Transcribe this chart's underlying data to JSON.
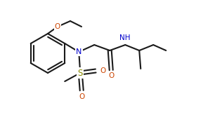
{
  "bg_color": "#ffffff",
  "line_color": "#1a1a1a",
  "atom_colors": {
    "N": "#0000cc",
    "O": "#cc4400",
    "S": "#888800",
    "H": "#333333",
    "C": "#1a1a1a"
  },
  "figsize": [
    3.16,
    1.64
  ],
  "dpi": 100
}
